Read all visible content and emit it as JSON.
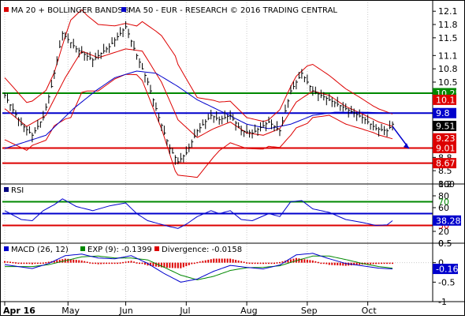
{
  "chart_data": [
    {
      "type": "line",
      "panel": "price",
      "legend": [
        {
          "label": "MA 20 + BOLLINGER BANDS®",
          "color": "#dd0000"
        },
        {
          "label": "MA 50 - EUR - RESEARCH © 2016 TRADING CENTRAL",
          "color": "#0000cc"
        }
      ],
      "ylim": [
        8.2,
        12.3
      ],
      "y_ticks": [
        12.1,
        11.8,
        11.5,
        11.1,
        10.8,
        10.5,
        10.1,
        9.8,
        9.5,
        9.2,
        8.8,
        8.5,
        8.2
      ],
      "x_ticks": [
        "Apr 16",
        "May",
        "Jun",
        "Jul",
        "Aug",
        "Sep",
        "Oct"
      ],
      "x_tick_positions": [
        0,
        23,
        44,
        66,
        88,
        110,
        132
      ],
      "num_days": 146,
      "levels": [
        {
          "value": 10.25,
          "label": "10.25",
          "color": "#008800"
        },
        {
          "value": 9.8,
          "label": "9.8",
          "color": "#0000cc"
        },
        {
          "value": 9.01,
          "label": "9.01",
          "color": "#dd0000"
        },
        {
          "value": 8.67,
          "label": "8.67",
          "color": "#dd0000"
        }
      ],
      "tags": [
        {
          "value": 10.1,
          "label": "10.1",
          "color": "#dd0000"
        },
        {
          "value": 9.51,
          "label": "9.51",
          "color": "#000000"
        },
        {
          "value": 9.23,
          "label": "9.23",
          "color": "#dd0000"
        }
      ],
      "price_keypoints": [
        [
          0,
          10.2
        ],
        [
          6,
          9.55
        ],
        [
          10,
          9.3
        ],
        [
          14,
          9.7
        ],
        [
          17,
          10.4
        ],
        [
          21,
          11.6
        ],
        [
          26,
          11.25
        ],
        [
          32,
          11.0
        ],
        [
          38,
          11.3
        ],
        [
          44,
          11.75
        ],
        [
          48,
          11.1
        ],
        [
          52,
          10.5
        ],
        [
          56,
          9.7
        ],
        [
          60,
          9.0
        ],
        [
          63,
          8.7
        ],
        [
          66,
          8.9
        ],
        [
          70,
          9.4
        ],
        [
          75,
          9.75
        ],
        [
          78,
          9.65
        ],
        [
          82,
          9.75
        ],
        [
          86,
          9.4
        ],
        [
          90,
          9.35
        ],
        [
          96,
          9.6
        ],
        [
          100,
          9.4
        ],
        [
          104,
          10.3
        ],
        [
          108,
          10.7
        ],
        [
          112,
          10.3
        ],
        [
          118,
          10.1
        ],
        [
          124,
          9.9
        ],
        [
          130,
          9.7
        ],
        [
          135,
          9.45
        ],
        [
          139,
          9.4
        ],
        [
          141,
          9.55
        ]
      ],
      "ma50_keypoints": [
        [
          0,
          9.0
        ],
        [
          15,
          9.3
        ],
        [
          25,
          9.9
        ],
        [
          33,
          10.3
        ],
        [
          40,
          10.6
        ],
        [
          48,
          10.75
        ],
        [
          55,
          10.7
        ],
        [
          63,
          10.4
        ],
        [
          70,
          10.1
        ],
        [
          80,
          9.8
        ],
        [
          88,
          9.55
        ],
        [
          96,
          9.45
        ],
        [
          104,
          9.55
        ],
        [
          112,
          9.75
        ],
        [
          120,
          9.82
        ],
        [
          130,
          9.82
        ],
        [
          141,
          9.8
        ]
      ],
      "ma20_keypoints": [
        [
          0,
          9.9
        ],
        [
          8,
          9.5
        ],
        [
          15,
          9.75
        ],
        [
          22,
          10.6
        ],
        [
          28,
          11.2
        ],
        [
          34,
          11.05
        ],
        [
          44,
          11.25
        ],
        [
          50,
          11.2
        ],
        [
          57,
          10.5
        ],
        [
          63,
          9.65
        ],
        [
          70,
          9.25
        ],
        [
          76,
          9.45
        ],
        [
          82,
          9.6
        ],
        [
          88,
          9.35
        ],
        [
          94,
          9.3
        ],
        [
          100,
          9.45
        ],
        [
          106,
          10.05
        ],
        [
          112,
          10.3
        ],
        [
          118,
          10.2
        ],
        [
          124,
          9.95
        ],
        [
          130,
          9.78
        ],
        [
          136,
          9.6
        ],
        [
          141,
          9.5
        ]
      ],
      "band_width_keypoints": [
        [
          0,
          0.7
        ],
        [
          10,
          0.5
        ],
        [
          18,
          0.6
        ],
        [
          24,
          1.1
        ],
        [
          30,
          0.85
        ],
        [
          40,
          0.6
        ],
        [
          48,
          0.55
        ],
        [
          55,
          0.95
        ],
        [
          62,
          1.3
        ],
        [
          70,
          0.9
        ],
        [
          78,
          0.55
        ],
        [
          88,
          0.35
        ],
        [
          96,
          0.3
        ],
        [
          104,
          0.55
        ],
        [
          110,
          0.65
        ],
        [
          118,
          0.45
        ],
        [
          126,
          0.38
        ],
        [
          134,
          0.3
        ],
        [
          141,
          0.28
        ]
      ],
      "forecast_arrow": {
        "from": [
          141,
          9.5
        ],
        "to": [
          147,
          9.0
        ]
      }
    },
    {
      "type": "line",
      "panel": "rsi",
      "title": "RSI",
      "ylim": [
        0,
        100
      ],
      "y_ticks": [
        100,
        80,
        60,
        40,
        20,
        0
      ],
      "levels": [
        {
          "value": 70,
          "label": "70",
          "color": "#008800"
        },
        {
          "value": 50,
          "label": "50",
          "color": "#0000cc"
        },
        {
          "value": 30,
          "label": "30",
          "color": "#dd0000"
        }
      ],
      "tags": [
        {
          "value": 38.28,
          "label": "38.28",
          "color": "#0000cc"
        }
      ],
      "rsi_keypoints": [
        [
          0,
          55
        ],
        [
          6,
          40
        ],
        [
          10,
          38
        ],
        [
          14,
          55
        ],
        [
          18,
          65
        ],
        [
          21,
          75
        ],
        [
          26,
          62
        ],
        [
          32,
          55
        ],
        [
          38,
          63
        ],
        [
          44,
          68
        ],
        [
          48,
          50
        ],
        [
          52,
          38
        ],
        [
          56,
          33
        ],
        [
          60,
          28
        ],
        [
          63,
          25
        ],
        [
          66,
          32
        ],
        [
          70,
          45
        ],
        [
          75,
          55
        ],
        [
          78,
          50
        ],
        [
          82,
          55
        ],
        [
          86,
          40
        ],
        [
          90,
          38
        ],
        [
          96,
          50
        ],
        [
          100,
          45
        ],
        [
          104,
          70
        ],
        [
          108,
          72
        ],
        [
          112,
          58
        ],
        [
          118,
          52
        ],
        [
          124,
          40
        ],
        [
          130,
          35
        ],
        [
          135,
          30
        ],
        [
          139,
          31
        ],
        [
          141,
          38
        ]
      ]
    },
    {
      "type": "line",
      "panel": "macd",
      "legend": [
        {
          "label": "MACD (26, 12)",
          "color": "#0000cc"
        },
        {
          "label": "EXP (9): -0.1399",
          "color": "#008800"
        },
        {
          "label": "Divergence: -0.0158",
          "color": "#dd0000"
        }
      ],
      "ylim": [
        -1,
        0.5
      ],
      "y_ticks": [
        0.5,
        0,
        -0.5,
        -1
      ],
      "tags": [
        {
          "value": -0.16,
          "label": "-0.16",
          "color": "#0000cc"
        }
      ],
      "macd_keypoints": [
        [
          0,
          -0.05
        ],
        [
          10,
          -0.15
        ],
        [
          16,
          -0.02
        ],
        [
          22,
          0.18
        ],
        [
          28,
          0.22
        ],
        [
          34,
          0.12
        ],
        [
          40,
          0.1
        ],
        [
          46,
          0.18
        ],
        [
          52,
          -0.02
        ],
        [
          58,
          -0.28
        ],
        [
          64,
          -0.5
        ],
        [
          70,
          -0.42
        ],
        [
          76,
          -0.22
        ],
        [
          82,
          -0.07
        ],
        [
          88,
          -0.12
        ],
        [
          94,
          -0.16
        ],
        [
          100,
          -0.06
        ],
        [
          106,
          0.2
        ],
        [
          112,
          0.24
        ],
        [
          118,
          0.1
        ],
        [
          124,
          -0.02
        ],
        [
          130,
          -0.08
        ],
        [
          136,
          -0.14
        ],
        [
          141,
          -0.16
        ]
      ],
      "signal_keypoints": [
        [
          0,
          -0.1
        ],
        [
          10,
          -0.1
        ],
        [
          16,
          -0.05
        ],
        [
          22,
          0.05
        ],
        [
          28,
          0.15
        ],
        [
          34,
          0.17
        ],
        [
          40,
          0.12
        ],
        [
          46,
          0.12
        ],
        [
          52,
          0.07
        ],
        [
          58,
          -0.12
        ],
        [
          64,
          -0.32
        ],
        [
          70,
          -0.44
        ],
        [
          76,
          -0.35
        ],
        [
          82,
          -0.2
        ],
        [
          88,
          -0.13
        ],
        [
          94,
          -0.12
        ],
        [
          100,
          -0.08
        ],
        [
          106,
          0.05
        ],
        [
          112,
          0.17
        ],
        [
          118,
          0.17
        ],
        [
          124,
          0.08
        ],
        [
          130,
          -0.02
        ],
        [
          136,
          -0.1
        ],
        [
          141,
          -0.14
        ]
      ]
    }
  ]
}
